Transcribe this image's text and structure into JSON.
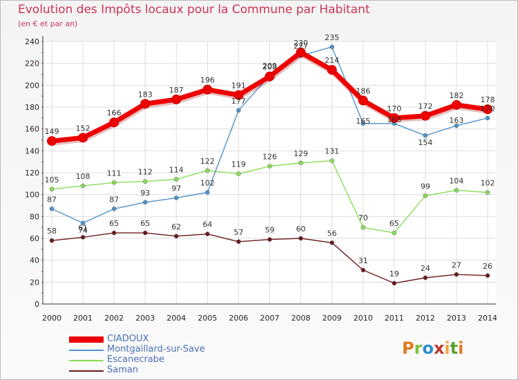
{
  "title": "Evolution des Impôts locaux pour la Commune par Habitant",
  "subtitle": "(en € et par an)",
  "logo": {
    "text": "Proxiti",
    "colors": [
      "#e07a1f",
      "#7fbf3f",
      "#2b8fd0",
      "#c0392b",
      "#f2a53b",
      "#5aa02c",
      "#e07a1f"
    ]
  },
  "chart_data": {
    "type": "line",
    "title": "Evolution des Impôts locaux pour la Commune par Habitant",
    "ylabel": "(en € et par an)",
    "xlabel": "",
    "ylim": [
      0,
      240
    ],
    "yticks": [
      0,
      20,
      40,
      60,
      80,
      100,
      120,
      140,
      160,
      180,
      200,
      220,
      240
    ],
    "categories": [
      "2000",
      "2001",
      "2002",
      "2003",
      "2004",
      "2005",
      "2006",
      "2007",
      "2008",
      "2009",
      "2010",
      "2011",
      "2012",
      "2013",
      "2014"
    ],
    "series": [
      {
        "name": "CIADOUX",
        "color": "#ee0000",
        "values": [
          149,
          152,
          166,
          183,
          187,
          196,
          191,
          208,
          230,
          214,
          186,
          170,
          172,
          182,
          178
        ]
      },
      {
        "name": "Montgaillard-sur-Save",
        "color": "#4f93cc",
        "values": [
          87,
          74,
          87,
          93,
          97,
          102,
          177,
          209,
          227,
          235,
          165,
          165,
          154,
          163,
          170
        ]
      },
      {
        "name": "Escanecrabe",
        "color": "#88dd55",
        "values": [
          105,
          108,
          111,
          112,
          114,
          122,
          119,
          126,
          129,
          131,
          70,
          65,
          99,
          104,
          102
        ]
      },
      {
        "name": "Saman",
        "color": "#6b1a1a",
        "values": [
          58,
          61,
          65,
          65,
          62,
          64,
          57,
          59,
          60,
          56,
          31,
          19,
          24,
          27,
          26
        ]
      }
    ]
  }
}
